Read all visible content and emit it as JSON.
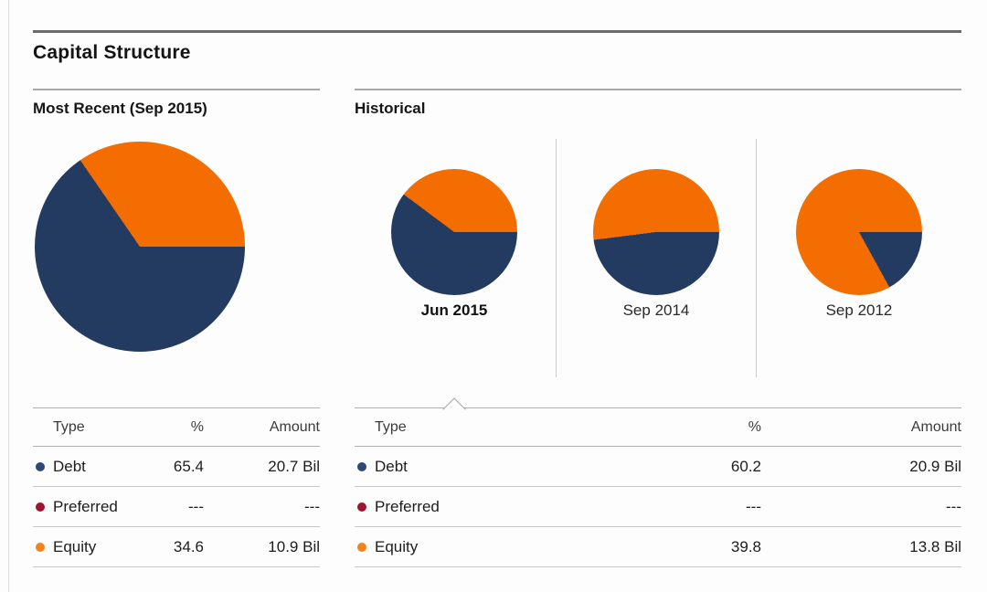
{
  "title": "Capital Structure",
  "colors": {
    "debt": "#243B61",
    "equity": "#F36D00",
    "preferred": "#9E1532",
    "debt_dot": "#2D4A77",
    "equity_dot": "#F0821F"
  },
  "most_recent": {
    "heading": "Most Recent (Sep 2015)",
    "pie": {
      "debt_pct": 65.4,
      "equity_pct": 34.6
    },
    "table": {
      "headers": {
        "type": "Type",
        "pct": "%",
        "amount": "Amount"
      },
      "rows": [
        {
          "type": "Debt",
          "pct": "65.4",
          "amount": "20.7 Bil",
          "dot": "debt_dot"
        },
        {
          "type": "Preferred",
          "pct": "---",
          "amount": "---",
          "dot": "preferred"
        },
        {
          "type": "Equity",
          "pct": "34.6",
          "amount": "10.9 Bil",
          "dot": "equity_dot"
        }
      ]
    }
  },
  "historical": {
    "heading": "Historical",
    "periods": [
      {
        "label": "Jun 2015",
        "debt_pct": 60.2,
        "equity_pct": 39.8,
        "selected": true
      },
      {
        "label": "Sep 2014",
        "debt_pct": 48.0,
        "equity_pct": 52.0,
        "selected": false
      },
      {
        "label": "Sep 2012",
        "debt_pct": 17.0,
        "equity_pct": 83.0,
        "selected": false
      }
    ],
    "table": {
      "headers": {
        "type": "Type",
        "pct": "%",
        "amount": "Amount"
      },
      "rows": [
        {
          "type": "Debt",
          "pct": "60.2",
          "amount": "20.9 Bil",
          "dot": "debt_dot"
        },
        {
          "type": "Preferred",
          "pct": "---",
          "amount": "---",
          "dot": "preferred"
        },
        {
          "type": "Equity",
          "pct": "39.8",
          "amount": "13.8 Bil",
          "dot": "equity_dot"
        }
      ]
    }
  },
  "chart_data": [
    {
      "type": "pie",
      "title": "Most Recent (Sep 2015)",
      "labels": [
        "Debt",
        "Preferred",
        "Equity"
      ],
      "values": [
        65.4,
        0,
        34.6
      ],
      "colors": [
        "#243B61",
        "#9E1532",
        "#F36D00"
      ],
      "layout": "first slice starts at 3 o'clock sweeping clockwise"
    },
    {
      "type": "pie",
      "title": "Jun 2015",
      "labels": [
        "Debt",
        "Equity"
      ],
      "values": [
        60.2,
        39.8
      ],
      "colors": [
        "#243B61",
        "#F36D00"
      ],
      "selected": true
    },
    {
      "type": "pie",
      "title": "Sep 2014",
      "labels": [
        "Debt",
        "Equity"
      ],
      "values": [
        48,
        52
      ],
      "colors": [
        "#243B61",
        "#F36D00"
      ],
      "note": "values estimated from slice angles; not labeled on screen"
    },
    {
      "type": "pie",
      "title": "Sep 2012",
      "labels": [
        "Debt",
        "Equity"
      ],
      "values": [
        17,
        83
      ],
      "colors": [
        "#243B61",
        "#F36D00"
      ],
      "note": "values estimated from slice angles; not labeled on screen"
    },
    {
      "type": "table",
      "title": "Most Recent (Sep 2015)",
      "columns": [
        "Type",
        "%",
        "Amount"
      ],
      "rows": [
        [
          "Debt",
          "65.4",
          "20.7 Bil"
        ],
        [
          "Preferred",
          "---",
          "---"
        ],
        [
          "Equity",
          "34.6",
          "10.9 Bil"
        ]
      ]
    },
    {
      "type": "table",
      "title": "Historical (Jun 2015 selected)",
      "columns": [
        "Type",
        "%",
        "Amount"
      ],
      "rows": [
        [
          "Debt",
          "60.2",
          "20.9 Bil"
        ],
        [
          "Preferred",
          "---",
          "---"
        ],
        [
          "Equity",
          "39.8",
          "13.8 Bil"
        ]
      ]
    }
  ]
}
